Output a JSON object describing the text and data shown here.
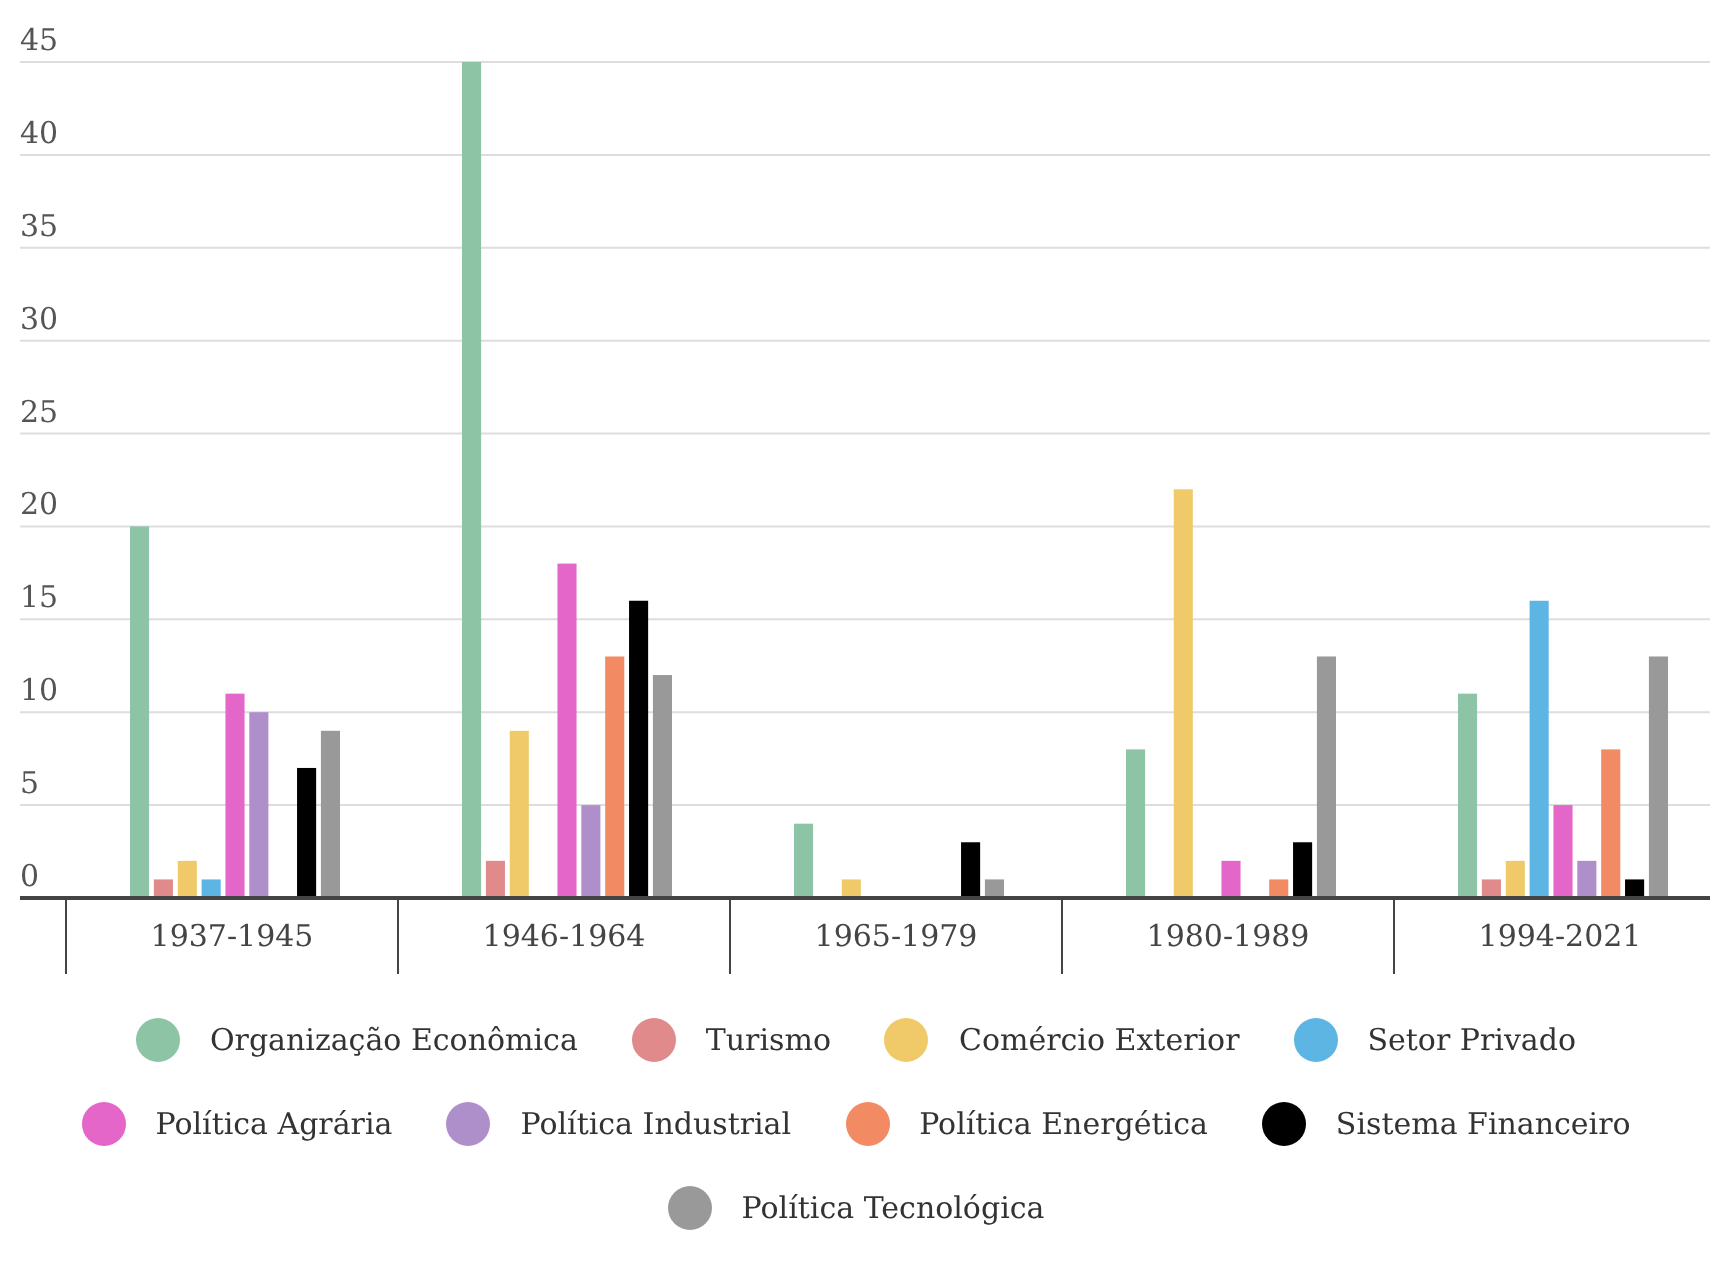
{
  "chart_data": {
    "type": "bar",
    "categories": [
      "1937-1945",
      "1946-1964",
      "1965-1979",
      "1980-1989",
      "1994-2021"
    ],
    "series": [
      {
        "name": "Organização Econômica",
        "color": "#8dc4a6",
        "values": [
          20,
          45,
          4,
          8,
          11
        ]
      },
      {
        "name": "Turismo",
        "color": "#e08a8c",
        "values": [
          1,
          2,
          0,
          0,
          1
        ]
      },
      {
        "name": "Comércio Exterior",
        "color": "#f0ca69",
        "values": [
          2,
          9,
          1,
          22,
          2
        ]
      },
      {
        "name": "Setor Privado",
        "color": "#5db5e4",
        "values": [
          1,
          0,
          0,
          0,
          16
        ]
      },
      {
        "name": "Política Agrária",
        "color": "#e466c8",
        "values": [
          11,
          18,
          0,
          2,
          5
        ]
      },
      {
        "name": "Política Industrial",
        "color": "#ae8fc9",
        "values": [
          10,
          5,
          0,
          0,
          2
        ]
      },
      {
        "name": "Política Energética",
        "color": "#f28a63",
        "values": [
          0,
          13,
          0,
          1,
          8
        ]
      },
      {
        "name": "Sistema Financeiro",
        "color": "#000000",
        "values": [
          7,
          16,
          3,
          3,
          1
        ]
      },
      {
        "name": "Política Tecnológica",
        "color": "#999999",
        "values": [
          9,
          12,
          1,
          13,
          13
        ]
      }
    ],
    "ylim": [
      0,
      45
    ],
    "yticks": [
      0,
      5,
      10,
      15,
      20,
      25,
      30,
      35,
      40,
      45
    ],
    "grid": "y",
    "legend": "bottom"
  }
}
